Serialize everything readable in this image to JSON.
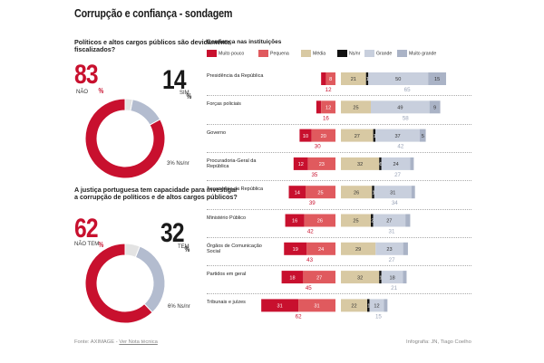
{
  "title": "Corrupção e confiança - sondagem",
  "q1": {
    "question": "Políticos e altos cargos públicos são devidamente fiscalizados?",
    "no_pct": "83",
    "no_label": "NÃO",
    "yes_pct": "14",
    "yes_label": "SIM",
    "ns_label": "3% Ns/nr",
    "pct_sign": "%"
  },
  "q2": {
    "question": "A justiça portuguesa tem capacidade para investigar a corrupção de políticos e de altos cargos públicos?",
    "no_pct": "62",
    "no_label": "NÃO TEM",
    "yes_pct": "32",
    "yes_label": "TEM",
    "ns_label": "6% Ns/nr",
    "pct_sign": "%"
  },
  "chart_data": [
    {
      "type": "pie",
      "title": "Políticos e altos cargos públicos são devidamente fiscalizados?",
      "categories": [
        "Não",
        "Sim",
        "Ns/nr"
      ],
      "values": [
        83,
        14,
        3
      ],
      "colors": [
        "#c8102e",
        "#b3bccf",
        "#e3e3e3"
      ]
    },
    {
      "type": "pie",
      "title": "A justiça portuguesa tem capacidade para investigar a corrupção de políticos e de altos cargos públicos?",
      "categories": [
        "Não tem",
        "Tem",
        "Ns/nr"
      ],
      "values": [
        62,
        32,
        6
      ],
      "colors": [
        "#c8102e",
        "#b3bccf",
        "#e3e3e3"
      ]
    },
    {
      "type": "bar",
      "title": "Confiança nas instituições",
      "categories": [
        "Presidência da República",
        "Forças policiais",
        "Governo",
        "Procuradoria-Geral da República",
        "Assembleia da República",
        "Ministério Público",
        "Órgãos de Comunicação Social",
        "Partidos em geral",
        "Tribunais e juízes"
      ],
      "series": [
        {
          "name": "Muito pouco",
          "color": "#c8102e",
          "values": [
            4,
            4,
            10,
            12,
            14,
            16,
            19,
            18,
            31
          ]
        },
        {
          "name": "Pequena",
          "color": "#e05a5e",
          "values": [
            8,
            12,
            20,
            23,
            25,
            26,
            24,
            27,
            31
          ]
        },
        {
          "name": "Média",
          "color": "#d8c9a3",
          "values": [
            21,
            25,
            27,
            32,
            26,
            25,
            29,
            32,
            22
          ]
        },
        {
          "name": "Ns/nr",
          "color": "#111111",
          "values": [
            1,
            0,
            1,
            6,
            1,
            2,
            0,
            1,
            1
          ]
        },
        {
          "name": "Grande",
          "color": "#c8cfdd",
          "values": [
            50,
            49,
            37,
            24,
            31,
            27,
            23,
            18,
            12
          ]
        },
        {
          "name": "Muito grande",
          "color": "#aab3c6",
          "values": [
            15,
            9,
            5,
            3,
            3,
            4,
            4,
            3,
            3
          ]
        }
      ],
      "negative_totals": [
        12,
        16,
        30,
        35,
        39,
        42,
        43,
        45,
        62
      ],
      "positive_totals": [
        65,
        58,
        42,
        27,
        34,
        31,
        27,
        21,
        15
      ]
    }
  ],
  "footer": {
    "source_label": "Fonte:",
    "source": "AXIMAGE",
    "sep": " - ",
    "note_link": "Ver Nota técnica",
    "credit_label": "Infografia:",
    "credit": "JN, Tiago Coelho"
  }
}
